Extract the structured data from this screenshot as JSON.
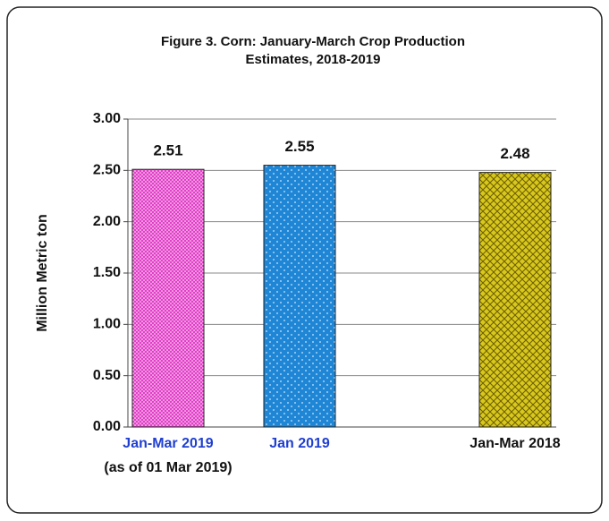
{
  "chart_data": {
    "type": "bar",
    "title_lines": [
      "Figure 3. Corn:  January-March Crop Production",
      "Estimates, 2018-2019"
    ],
    "ylabel": "Million Metric ton",
    "categories": [
      "Jan-Mar 2019",
      "Jan 2019",
      "Jan-Mar 2018"
    ],
    "category_sublabels": [
      "(as of 01 Mar 2019)",
      null,
      null
    ],
    "category_label_colors": [
      "#1f3fd0",
      "#1f3fd0",
      "#111111"
    ],
    "values": [
      2.51,
      2.55,
      2.48
    ],
    "colors": [
      "#e23fc8",
      "#1f86d6",
      "#d8c81e"
    ],
    "ylim": [
      0,
      3
    ],
    "yticks": [
      {
        "value": 0,
        "label": "0.00"
      },
      {
        "value": 0.5,
        "label": "0.50"
      },
      {
        "value": 1,
        "label": "1.00"
      },
      {
        "value": 1.5,
        "label": "1.50"
      },
      {
        "value": 2,
        "label": "2.00"
      },
      {
        "value": 2.5,
        "label": "2.50"
      },
      {
        "value": 3,
        "label": "3.00"
      }
    ],
    "grid": true
  }
}
